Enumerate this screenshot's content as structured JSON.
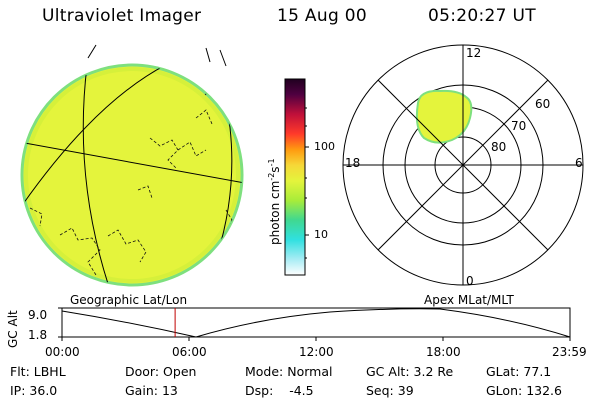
{
  "header": {
    "instrument": "Ultraviolet Imager",
    "date": "15 Aug 00",
    "time": "05:20:27 UT"
  },
  "globe": {
    "label": "Geographic Lat/Lon"
  },
  "colorbar": {
    "units_main": "photon cm",
    "units_exp1": "-2",
    "units_mid": "s",
    "units_exp2": "-1",
    "tick_100": "100",
    "tick_10": "10"
  },
  "polar": {
    "label": "Apex MLat/MLT",
    "mlt_12": "12",
    "mlt_18": "18",
    "mlt_6": "6",
    "mlt_0": "0",
    "lat_60": "60",
    "lat_70": "70",
    "lat_80": "80"
  },
  "altitude_plot": {
    "ylabel": "GC Alt",
    "y_max": "9.0",
    "y_min": "1.8",
    "x_ticks": [
      "00:00",
      "06:00",
      "12:00",
      "18:00",
      "23:59"
    ],
    "current_time_hours": 5.34
  },
  "info": {
    "flt_label": "Flt:",
    "flt_value": "LBHL",
    "ip_label": "IP:",
    "ip_value": "36.0",
    "door_label": "Door:",
    "door_value": "Open",
    "gain_label": "Gain:",
    "gain_value": "13",
    "mode_label": "Mode:",
    "mode_value": "Normal",
    "dsp_label": "Dsp:",
    "dsp_value": "-4.5",
    "gcalt_label": "GC Alt:",
    "gcalt_value": "3.2 Re",
    "seq_label": "Seq:",
    "seq_value": "39",
    "glat_label": "GLat:",
    "glat_value": "77.1",
    "glon_label": "GLon:",
    "glon_value": "132.6"
  }
}
